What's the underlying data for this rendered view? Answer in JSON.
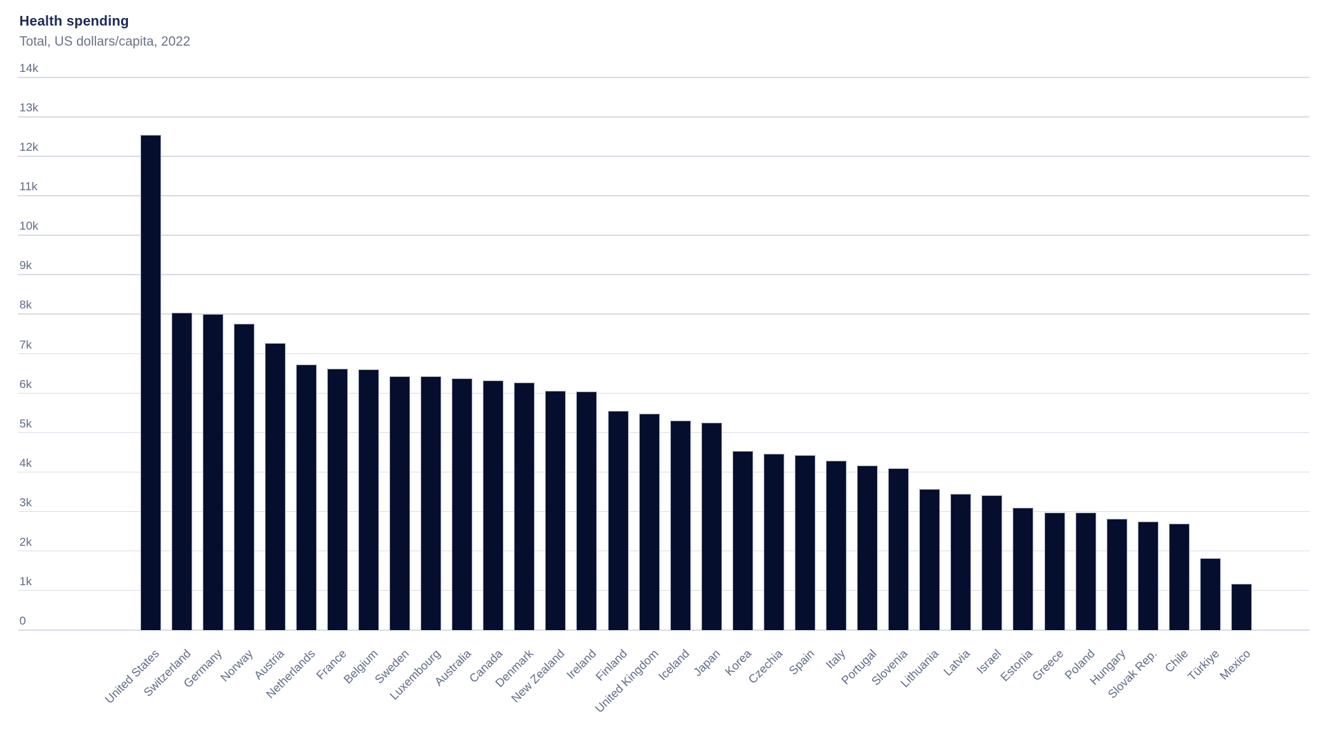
{
  "header": {
    "title": "Health spending",
    "subtitle": "Total, US dollars/capita, 2022"
  },
  "colors": {
    "bar": "#050e2d",
    "bar_edge": "#a9b0c6",
    "grid": "#d9dde6",
    "title_text": "#1c2a55",
    "subtitle_text": "#6a7286",
    "axis_text": "#5f6b87"
  },
  "chart_data": {
    "type": "bar",
    "title": "Health spending",
    "subtitle": "Total, US dollars/capita, 2022",
    "unit": "US dollars/capita",
    "year": "2022",
    "orientation": "vertical",
    "legend": "none",
    "grid": "horizontal",
    "x_label_rotation": -45,
    "ylim": [
      0,
      14000
    ],
    "y_tick_interval": 1000,
    "y_tick_labels": [
      "0",
      "1k",
      "2k",
      "3k",
      "4k",
      "5k",
      "6k",
      "7k",
      "8k",
      "9k",
      "10k",
      "11k",
      "12k",
      "13k",
      "14k"
    ],
    "categories": [
      "United States",
      "Switzerland",
      "Germany",
      "Norway",
      "Austria",
      "Netherlands",
      "France",
      "Belgium",
      "Sweden",
      "Luxembourg",
      "Australia",
      "Canada",
      "Denmark",
      "New Zealand",
      "Ireland",
      "Finland",
      "United Kingdom",
      "Iceland",
      "Japan",
      "Korea",
      "Czechia",
      "Spain",
      "Italy",
      "Portugal",
      "Slovenia",
      "Lithuania",
      "Latvia",
      "Israel",
      "Estonia",
      "Greece",
      "Poland",
      "Hungary",
      "Slovak Rep.",
      "Chile",
      "Türkiye",
      "Mexico"
    ],
    "values": [
      12555,
      8049,
      8011,
      7771,
      7275,
      6729,
      6630,
      6600,
      6438,
      6436,
      6372,
      6319,
      6280,
      6061,
      6047,
      5559,
      5493,
      5311,
      5251,
      4541,
      4471,
      4432,
      4291,
      4162,
      4098,
      3574,
      3445,
      3417,
      3097,
      2987,
      2973,
      2819,
      2756,
      2699,
      1827,
      1181
    ]
  }
}
